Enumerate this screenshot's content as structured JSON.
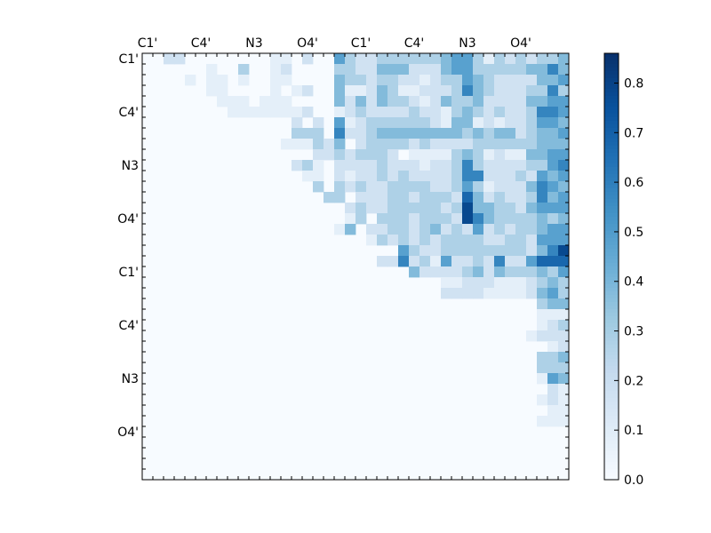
{
  "chart_data": {
    "type": "heatmap",
    "title": "",
    "xlabel": "",
    "ylabel": "",
    "grid": false,
    "n": 40,
    "cmap": "Blues",
    "x_tick_labels": [
      "C1'",
      "C4'",
      "N3",
      "O4'",
      "C1'",
      "C4'",
      "N3",
      "O4'"
    ],
    "y_tick_labels": [
      "C1'",
      "C4'",
      "N3",
      "O4'",
      "C1'",
      "C4'",
      "N3",
      "O4'"
    ],
    "tick_positions": [
      0.5,
      5.5,
      10.5,
      15.5,
      20.5,
      25.5,
      30.5,
      35.5
    ],
    "colorbar": {
      "vmin": 0.0,
      "vmax": 0.86,
      "ticks": [
        0.0,
        0.1,
        0.2,
        0.3,
        0.4,
        0.5,
        0.6,
        0.7,
        0.8
      ],
      "tick_labels": [
        "0.0",
        "0.1",
        "0.2",
        "0.3",
        "0.4",
        "0.5",
        "0.6",
        "0.7",
        "0.8"
      ]
    },
    "rows": [
      "0022000000001102005322333333455313232334",
      "0000001003001200003322444222455333334464",
      "0000101101001100004332332212335432222445",
      "0000001100001012004112431122236432223363",
      "0000000111011100004242433212433422224455",
      "0000000011111112001232222322134323223665",
      "0000000000000020205123333332144121223554",
      "0000000000000033306223444444443434423445",
      "0000000000000111324023333232222333333444",
      "0000000000000000223233320111134312114455",
      "0000000000000023102222322212236322223356",
      "0000000000000001102122323222236622232545",
      "0000000000000000303232233332235312224654",
      "0000000000000000033022233233327423223645",
      "0000000000000000000232233333238443324555",
      "0000000000000000000130333233328643333434",
      "0000000000000000001402233234232523233455",
      "0000000000000000000001323232333322332555",
      "0000000000000000000000005322333333332468",
      "0000000000000000000000226231522326225777",
      "0000000000000000000000000422223424333435",
      "0000000000000000000000000000112221112343",
      "0000000000000000000000000000222211112453",
      "0000000000000000000000000000000000000344",
      "0000000000000000000000000000000000000111",
      "0000000000000000000000000000000000000123",
      "0000000000000000000000000000000000001222",
      "0000000000000000000000000000000000000012",
      "0000000000000000000000000000000000000334",
      "0000000000000000000000000000000000000333",
      "0000000000000000000000000000000000000154",
      "0000000000000000000000000000000000000021",
      "0000000000000000000000000000000000000121",
      "0000000000000000000000000000000000000011",
      "0000000000000000000000000000000000000111",
      "0000000000000000000000000000000000000000",
      "0000000000000000000000000000000000000000",
      "0000000000000000000000000000000000000000",
      "0000000000000000000000000000000000000000",
      "0000000000000000000000000000000000000000"
    ],
    "level_values": [
      0.0,
      0.08,
      0.17,
      0.28,
      0.38,
      0.48,
      0.58,
      0.68,
      0.78,
      0.86
    ]
  }
}
